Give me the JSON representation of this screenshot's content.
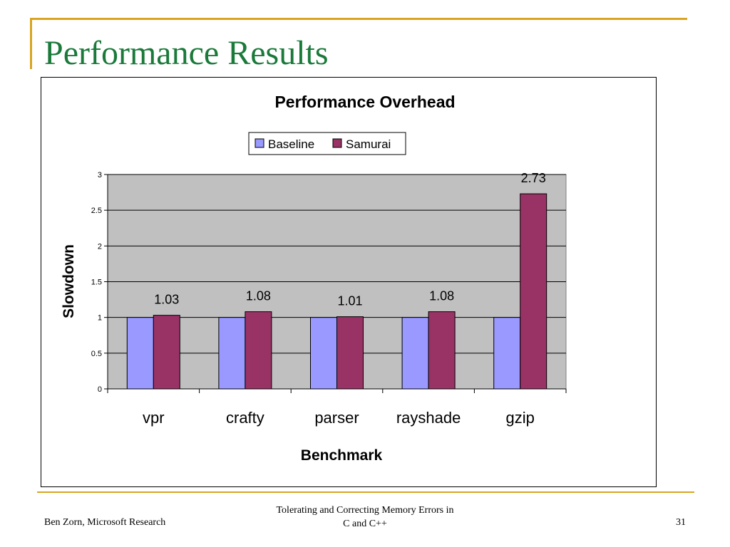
{
  "slide": {
    "title": "Performance Results",
    "footer_left": "Ben Zorn, Microsoft Research",
    "footer_center_line1": "Tolerating and Correcting Memory Errors in",
    "footer_center_line2": "C and C++",
    "page_number": "31",
    "accent_color": "#d9a520",
    "title_color": "#1a7a3a"
  },
  "chart_data": {
    "type": "bar",
    "title": "Performance Overhead",
    "xlabel": "Benchmark",
    "ylabel": "Slowdown",
    "categories": [
      "vpr",
      "crafty",
      "parser",
      "rayshade",
      "gzip"
    ],
    "series": [
      {
        "name": "Baseline",
        "color": "#9999ff",
        "values": [
          1,
          1,
          1,
          1,
          1
        ],
        "labels": []
      },
      {
        "name": "Samurai",
        "color": "#993366",
        "values": [
          1.03,
          1.08,
          1.01,
          1.08,
          2.73
        ],
        "labels": [
          "1.03",
          "1.08",
          "1.01",
          "1.08",
          "2.73"
        ]
      }
    ],
    "ylim": [
      0,
      3
    ],
    "yticks": [
      "0",
      "0.5",
      "1",
      "1.5",
      "2",
      "2.5",
      "3"
    ],
    "grid": true,
    "plot_background": "#c0c0c0",
    "legend_position": "top-center"
  }
}
